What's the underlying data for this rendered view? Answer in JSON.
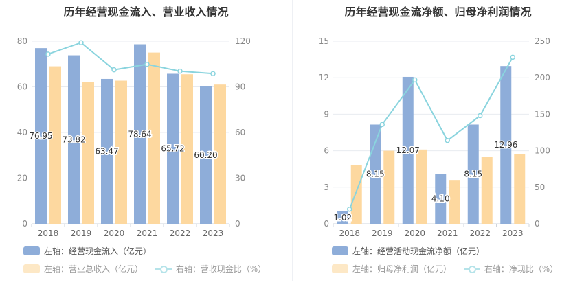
{
  "charts": [
    {
      "title": "历年经营现金流入、营业收入情况",
      "chart_data": {
        "type": "bar",
        "categories": [
          "2018",
          "2019",
          "2020",
          "2021",
          "2022",
          "2023"
        ],
        "left_axis": {
          "min": 0,
          "max": 80,
          "ticks": [
            0,
            20,
            40,
            60,
            80
          ]
        },
        "right_axis": {
          "min": 0,
          "max": 120,
          "ticks": [
            0,
            30,
            60,
            90,
            120
          ]
        },
        "series": [
          {
            "name": "左轴：经营现金流入（亿元）",
            "kind": "bar",
            "axis": "left",
            "color": "#8eadd9",
            "values": [
              76.95,
              73.82,
              63.47,
              78.64,
              65.72,
              60.2
            ],
            "labels": [
              "76.95",
              "73.82",
              "63.47",
              "78.64",
              "65.72",
              "60.20"
            ]
          },
          {
            "name": "左轴：营业总收入（亿元）",
            "kind": "bar",
            "axis": "left",
            "color": "#fdd89f",
            "values": [
              69.0,
              62.0,
              62.7,
              75.0,
              65.5,
              61.0
            ]
          },
          {
            "name": "右轴：营收现金比（%）",
            "kind": "line",
            "axis": "right",
            "color": "#8ad4de",
            "values": [
              111.5,
              119.0,
              101.2,
              104.8,
              100.3,
              98.7
            ]
          }
        ]
      }
    },
    {
      "title": "历年经营现金流净额、归母净利润情况",
      "chart_data": {
        "type": "bar",
        "categories": [
          "2018",
          "2019",
          "2020",
          "2021",
          "2022",
          "2023"
        ],
        "left_axis": {
          "min": 0,
          "max": 15,
          "ticks": [
            0,
            3,
            6,
            9,
            12,
            15
          ]
        },
        "right_axis": {
          "min": 0,
          "max": 250,
          "ticks": [
            0,
            50,
            100,
            150,
            200,
            250
          ]
        },
        "series": [
          {
            "name": "左轴：经营活动现金流净额（亿元）",
            "kind": "bar",
            "axis": "left",
            "color": "#8eadd9",
            "values": [
              1.02,
              8.15,
              12.07,
              4.1,
              8.15,
              12.96
            ],
            "labels": [
              "1.02",
              "8.15",
              "12.07",
              "4.10",
              "8.15",
              "12.96"
            ]
          },
          {
            "name": "左轴：归母净利润（亿元）",
            "kind": "bar",
            "axis": "left",
            "color": "#fdd89f",
            "values": [
              4.85,
              6.0,
              6.1,
              3.6,
              5.5,
              5.7
            ]
          },
          {
            "name": "右轴：净现比（%）",
            "kind": "line",
            "axis": "right",
            "color": "#8ad4de",
            "values": [
              20,
              136,
              197,
              114,
              148,
              228
            ]
          }
        ]
      }
    }
  ]
}
